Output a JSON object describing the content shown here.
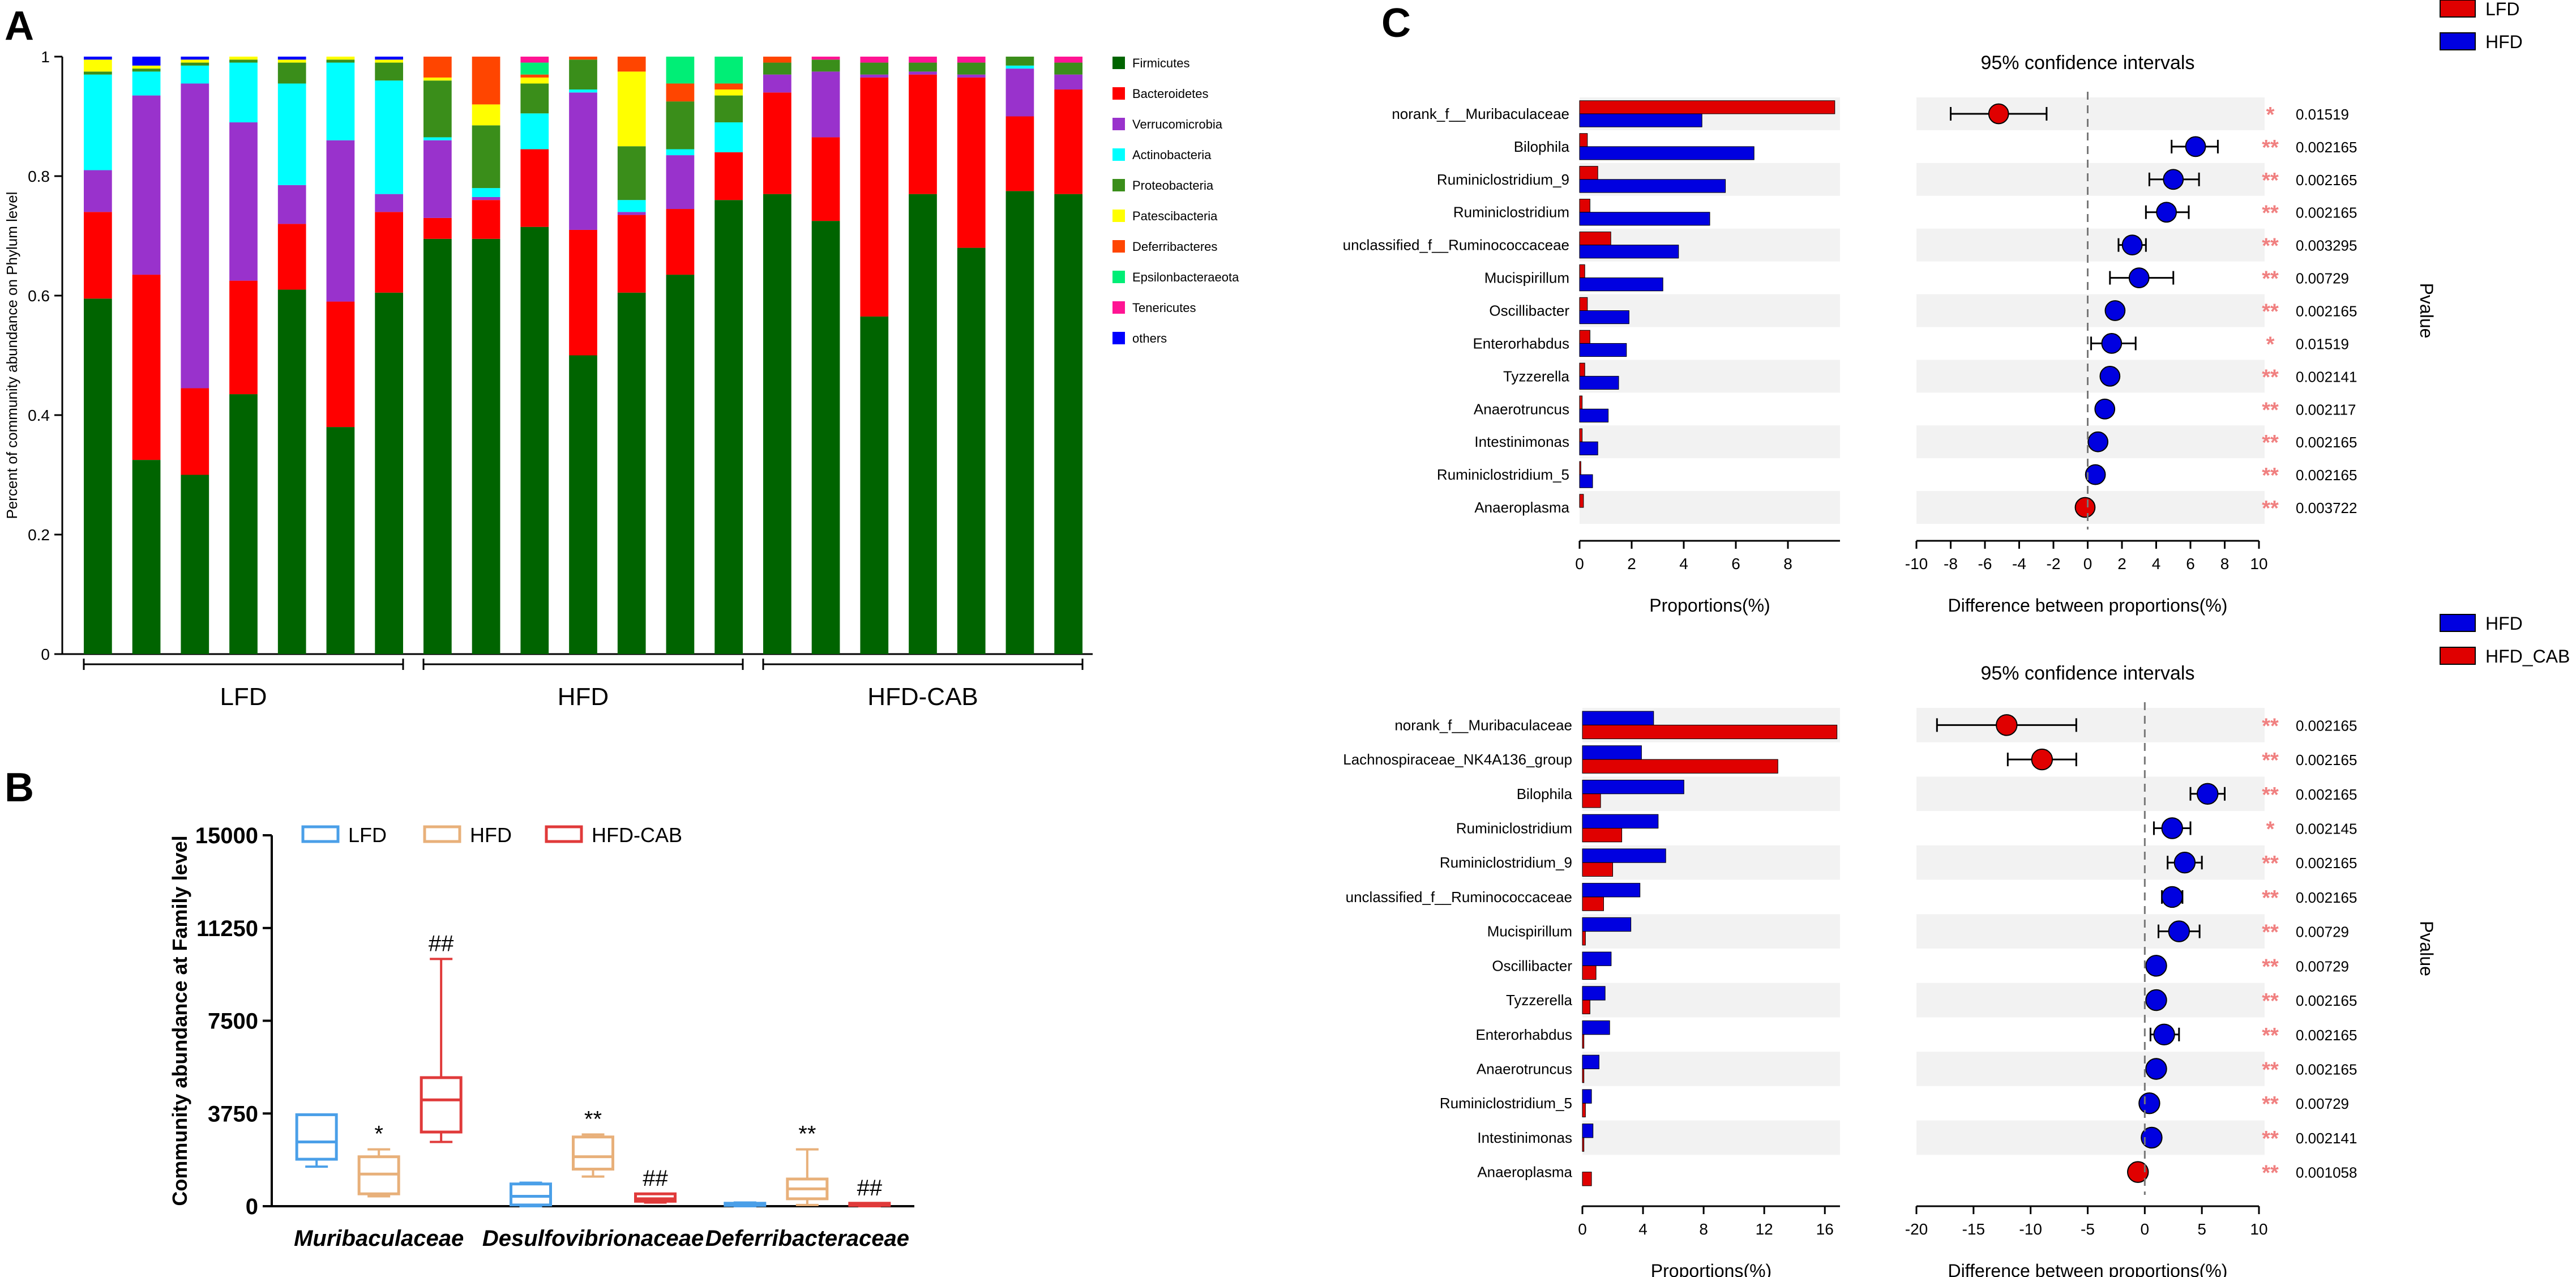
{
  "panel_letters": {
    "a": "A",
    "b": "B",
    "c": "C"
  },
  "colors": {
    "firmicutes": "#006400",
    "bacteroidetes": "#ff0000",
    "verrucomicrobia": "#9932cc",
    "actinobacteria": "#00ffff",
    "proteobacteria": "#3a8e1a",
    "patescibacteria": "#ffff00",
    "deferribacteres": "#ff4500",
    "epsilon": "#00ee76",
    "tenericutes": "#ff1493",
    "others": "#0000ff",
    "lfd_box": "#4a9fe8",
    "hfd_box": "#e8b07a",
    "cab_box": "#e03a3a",
    "blue": "#0000e0",
    "red": "#e00000",
    "star": "#f08080"
  },
  "chart_data": [
    {
      "type": "stacked-bar",
      "title": "",
      "ylabel": "Percent of community abundance on Phylum level",
      "ylim": [
        0,
        1
      ],
      "yticks": [
        "0",
        "0.2",
        "0.4",
        "0.6",
        "0.8",
        "1"
      ],
      "groups": [
        {
          "label": "LFD",
          "start": 0,
          "count": 7
        },
        {
          "label": "HFD",
          "start": 7,
          "count": 7
        },
        {
          "label": "HFD-CAB",
          "start": 14,
          "count": 7
        }
      ],
      "legend": [
        "Firmicutes",
        "Bacteroidetes",
        "Verrucomicrobia",
        "Actinobacteria",
        "Proteobacteria",
        "Patescibacteria",
        "Deferribacteres",
        "Epsilonbacteraeota",
        "Tenericutes",
        "others"
      ],
      "series_colors": [
        "#006400",
        "#ff0000",
        "#9932cc",
        "#00ffff",
        "#3a8e1a",
        "#ffff00",
        "#ff4500",
        "#00ee76",
        "#ff1493",
        "#0000ff"
      ],
      "samples": [
        [
          0.595,
          0.145,
          0.07,
          0.16,
          0.005,
          0.02,
          0,
          0,
          0,
          0.005
        ],
        [
          0.325,
          0.31,
          0.3,
          0.04,
          0.005,
          0.005,
          0,
          0,
          0,
          0.015
        ],
        [
          0.3,
          0.145,
          0.51,
          0.03,
          0.005,
          0.005,
          0,
          0,
          0,
          0.005
        ],
        [
          0.435,
          0.19,
          0.265,
          0.1,
          0.005,
          0.005,
          0,
          0,
          0,
          0
        ],
        [
          0.61,
          0.11,
          0.065,
          0.17,
          0.035,
          0.005,
          0,
          0,
          0,
          0.005
        ],
        [
          0.38,
          0.21,
          0.27,
          0.13,
          0.005,
          0.005,
          0,
          0,
          0,
          0
        ],
        [
          0.605,
          0.135,
          0.03,
          0.19,
          0.03,
          0.005,
          0,
          0,
          0,
          0.005
        ],
        [
          0.695,
          0.035,
          0.13,
          0.005,
          0.095,
          0.005,
          0.035,
          0,
          0,
          0
        ],
        [
          0.695,
          0.065,
          0.005,
          0.015,
          0.105,
          0.035,
          0.08,
          0,
          0,
          0
        ],
        [
          0.715,
          0.13,
          0,
          0.06,
          0.05,
          0.01,
          0.005,
          0.02,
          0.01,
          0
        ],
        [
          0.5,
          0.21,
          0.23,
          0.005,
          0.05,
          0,
          0.005,
          0,
          0,
          0
        ],
        [
          0.605,
          0.13,
          0.005,
          0.02,
          0.09,
          0.125,
          0.025,
          0,
          0,
          0
        ],
        [
          0.635,
          0.11,
          0.09,
          0.01,
          0.08,
          0,
          0.03,
          0.045,
          0,
          0
        ],
        [
          0.76,
          0.08,
          0,
          0.05,
          0.045,
          0.01,
          0.01,
          0.045,
          0,
          0
        ],
        [
          0.77,
          0.17,
          0.03,
          0,
          0.02,
          0,
          0.01,
          0,
          0,
          0
        ],
        [
          0.725,
          0.14,
          0.11,
          0,
          0.02,
          0,
          0,
          0,
          0.005,
          0
        ],
        [
          0.565,
          0.4,
          0.005,
          0,
          0.02,
          0,
          0,
          0,
          0.01,
          0
        ],
        [
          0.77,
          0.2,
          0.005,
          0,
          0.015,
          0,
          0,
          0,
          0.01,
          0
        ],
        [
          0.68,
          0.285,
          0.005,
          0,
          0.02,
          0,
          0,
          0,
          0.01,
          0
        ],
        [
          0.775,
          0.125,
          0.08,
          0.005,
          0.015,
          0,
          0,
          0,
          0,
          0
        ],
        [
          0.77,
          0.175,
          0.025,
          0,
          0.02,
          0,
          0,
          0,
          0.01,
          0
        ]
      ]
    },
    {
      "type": "box",
      "ylabel": "Community abundance at Family level",
      "ylim": [
        0,
        15000
      ],
      "yticks": [
        "0",
        "3750",
        "7500",
        "11250",
        "15000"
      ],
      "legend": [
        "LFD",
        "HFD",
        "HFD-CAB"
      ],
      "categories": [
        "Muribaculaceae",
        "Desulfovibrionaceae",
        "Deferribacteraceae"
      ],
      "boxes": [
        [
          {
            "min": 1600,
            "q1": 1900,
            "median": 2600,
            "q3": 3700,
            "max": 3700,
            "mark": ""
          },
          {
            "min": 400,
            "q1": 500,
            "median": 1300,
            "q3": 2000,
            "max": 2300,
            "mark": "*"
          },
          {
            "min": 2600,
            "q1": 3000,
            "median": 4300,
            "q3": 5200,
            "max": 10000,
            "mark": "##"
          }
        ],
        [
          {
            "min": 0,
            "q1": 50,
            "median": 400,
            "q3": 900,
            "max": 950,
            "mark": ""
          },
          {
            "min": 1200,
            "q1": 1500,
            "median": 2000,
            "q3": 2800,
            "max": 2900,
            "mark": "**"
          },
          {
            "min": 150,
            "q1": 200,
            "median": 300,
            "q3": 500,
            "max": 500,
            "mark": "##"
          }
        ],
        [
          {
            "min": 0,
            "q1": 30,
            "median": 80,
            "q3": 120,
            "max": 150,
            "mark": ""
          },
          {
            "min": 50,
            "q1": 300,
            "median": 700,
            "q3": 1100,
            "max": 2300,
            "mark": "**"
          },
          {
            "min": 0,
            "q1": 30,
            "median": 80,
            "q3": 120,
            "max": 120,
            "mark": "##"
          }
        ]
      ]
    },
    {
      "type": "extended-error-bar",
      "legend": [
        "LFD",
        "HFD"
      ],
      "legend_colors": [
        "#e00000",
        "#0000e0"
      ],
      "ci_title": "95% confidence intervals",
      "prop_label": "Proportions(%)",
      "diff_label": "Difference between proportions(%)",
      "pvalue_label": "Pvalue",
      "prop_xlim": [
        0,
        10
      ],
      "prop_ticks": [
        "0",
        "2",
        "4",
        "6",
        "8"
      ],
      "diff_xlim": [
        -10,
        10
      ],
      "diff_ticks": [
        "-10",
        "-8",
        "-6",
        "-4",
        "-2",
        "0",
        "2",
        "4",
        "6",
        "8",
        "10"
      ],
      "rows": [
        {
          "name": "norank_f__Muribaculaceae",
          "a": 9.8,
          "b": 4.7,
          "diff": -5.2,
          "lo": -8.0,
          "hi": -2.4,
          "sig": "*",
          "p": "0.01519"
        },
        {
          "name": "Bilophila",
          "a": 0.3,
          "b": 6.7,
          "diff": 6.3,
          "lo": 4.9,
          "hi": 7.6,
          "sig": "**",
          "p": "0.002165"
        },
        {
          "name": "Ruminiclostridium_9",
          "a": 0.7,
          "b": 5.6,
          "diff": 5.0,
          "lo": 3.6,
          "hi": 6.5,
          "sig": "**",
          "p": "0.002165"
        },
        {
          "name": "Ruminiclostridium",
          "a": 0.4,
          "b": 5.0,
          "diff": 4.6,
          "lo": 3.4,
          "hi": 5.9,
          "sig": "**",
          "p": "0.002165"
        },
        {
          "name": "unclassified_f__Ruminococcaceae",
          "a": 1.2,
          "b": 3.8,
          "diff": 2.6,
          "lo": 1.8,
          "hi": 3.4,
          "sig": "**",
          "p": "0.003295"
        },
        {
          "name": "Mucispirillum",
          "a": 0.2,
          "b": 3.2,
          "diff": 3.0,
          "lo": 1.3,
          "hi": 5.0,
          "sig": "**",
          "p": "0.00729"
        },
        {
          "name": "Oscillibacter",
          "a": 0.3,
          "b": 1.9,
          "diff": 1.6,
          "lo": 1.3,
          "hi": 2.0,
          "sig": "**",
          "p": "0.002165"
        },
        {
          "name": "Enterorhabdus",
          "a": 0.4,
          "b": 1.8,
          "diff": 1.4,
          "lo": 0.2,
          "hi": 2.8,
          "sig": "*",
          "p": "0.01519"
        },
        {
          "name": "Tyzzerella",
          "a": 0.2,
          "b": 1.5,
          "diff": 1.3,
          "lo": 1.0,
          "hi": 1.6,
          "sig": "**",
          "p": "0.002141"
        },
        {
          "name": "Anaerotruncus",
          "a": 0.1,
          "b": 1.1,
          "diff": 1.0,
          "lo": 0.8,
          "hi": 1.2,
          "sig": "**",
          "p": "0.002117"
        },
        {
          "name": "Intestinimonas",
          "a": 0.1,
          "b": 0.7,
          "diff": 0.6,
          "lo": 0.4,
          "hi": 0.8,
          "sig": "**",
          "p": "0.002165"
        },
        {
          "name": "Ruminiclostridium_5",
          "a": 0.05,
          "b": 0.5,
          "diff": 0.45,
          "lo": 0.3,
          "hi": 0.6,
          "sig": "**",
          "p": "0.002165"
        },
        {
          "name": "Anaeroplasma",
          "a": 0.15,
          "b": 0.0,
          "diff": -0.15,
          "lo": -0.3,
          "hi": 0.0,
          "sig": "**",
          "p": "0.003722"
        }
      ]
    },
    {
      "type": "extended-error-bar",
      "legend": [
        "HFD",
        "HFD_CAB"
      ],
      "legend_colors": [
        "#0000e0",
        "#e00000"
      ],
      "ci_title": "95% confidence intervals",
      "prop_label": "Proportions(%)",
      "diff_label": "Difference between proportions(%)",
      "pvalue_label": "Pvalue",
      "prop_xlim": [
        0,
        17
      ],
      "prop_ticks": [
        "0",
        "4",
        "8",
        "12",
        "16"
      ],
      "diff_xlim": [
        -20,
        10
      ],
      "diff_ticks": [
        "-20",
        "-15",
        "-10",
        "-5",
        "0",
        "5",
        "10"
      ],
      "rows": [
        {
          "name": "norank_f__Muribaculaceae",
          "a": 4.7,
          "b": 16.8,
          "diff": -12.1,
          "lo": -18.2,
          "hi": -6.0,
          "sig": "**",
          "p": "0.002165"
        },
        {
          "name": "Lachnospiraceae_NK4A136_group",
          "a": 3.9,
          "b": 12.9,
          "diff": -9.0,
          "lo": -12.0,
          "hi": -6.0,
          "sig": "**",
          "p": "0.002165"
        },
        {
          "name": "Bilophila",
          "a": 6.7,
          "b": 1.2,
          "diff": 5.5,
          "lo": 4.0,
          "hi": 7.0,
          "sig": "**",
          "p": "0.002165"
        },
        {
          "name": "Ruminiclostridium",
          "a": 5.0,
          "b": 2.6,
          "diff": 2.4,
          "lo": 0.8,
          "hi": 4.0,
          "sig": "*",
          "p": "0.002145"
        },
        {
          "name": "Ruminiclostridium_9",
          "a": 5.5,
          "b": 2.0,
          "diff": 3.5,
          "lo": 2.0,
          "hi": 5.0,
          "sig": "**",
          "p": "0.002165"
        },
        {
          "name": "unclassified_f__Ruminococcaceae",
          "a": 3.8,
          "b": 1.4,
          "diff": 2.4,
          "lo": 1.5,
          "hi": 3.3,
          "sig": "**",
          "p": "0.002165"
        },
        {
          "name": "Mucispirillum",
          "a": 3.2,
          "b": 0.2,
          "diff": 3.0,
          "lo": 1.2,
          "hi": 4.8,
          "sig": "**",
          "p": "0.00729"
        },
        {
          "name": "Oscillibacter",
          "a": 1.9,
          "b": 0.9,
          "diff": 1.0,
          "lo": 0.5,
          "hi": 1.5,
          "sig": "**",
          "p": "0.00729"
        },
        {
          "name": "Tyzzerella",
          "a": 1.5,
          "b": 0.5,
          "diff": 1.0,
          "lo": 0.6,
          "hi": 1.4,
          "sig": "**",
          "p": "0.002165"
        },
        {
          "name": "Enterorhabdus",
          "a": 1.8,
          "b": 0.1,
          "diff": 1.7,
          "lo": 0.5,
          "hi": 3.0,
          "sig": "**",
          "p": "0.002165"
        },
        {
          "name": "Anaerotruncus",
          "a": 1.1,
          "b": 0.1,
          "diff": 1.0,
          "lo": 0.6,
          "hi": 1.4,
          "sig": "**",
          "p": "0.002165"
        },
        {
          "name": "Ruminiclostridium_5",
          "a": 0.6,
          "b": 0.2,
          "diff": 0.4,
          "lo": 0.1,
          "hi": 0.7,
          "sig": "**",
          "p": "0.00729"
        },
        {
          "name": "Intestinimonas",
          "a": 0.7,
          "b": 0.1,
          "diff": 0.6,
          "lo": 0.3,
          "hi": 0.9,
          "sig": "**",
          "p": "0.002141"
        },
        {
          "name": "Anaeroplasma",
          "a": 0.0,
          "b": 0.6,
          "diff": -0.6,
          "lo": -1.0,
          "hi": -0.2,
          "sig": "**",
          "p": "0.001058"
        }
      ]
    }
  ]
}
